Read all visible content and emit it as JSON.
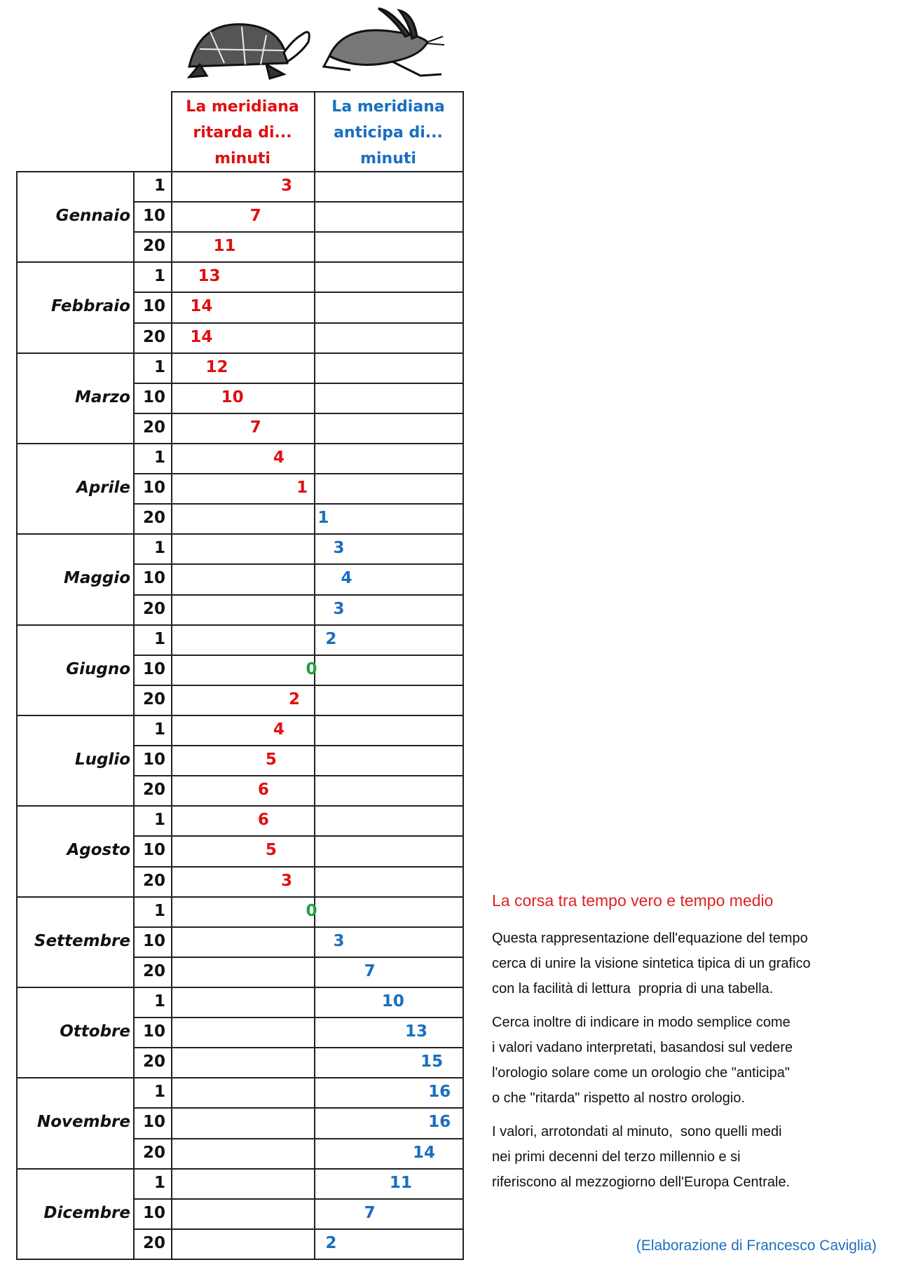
{
  "header": {
    "late": [
      "La meridiana",
      "ritarda di...",
      "minuti"
    ],
    "early": [
      "La meridiana",
      "anticipa di...",
      "minuti"
    ]
  },
  "months": [
    {
      "name": "Gennaio",
      "rows": [
        {
          "day": 1,
          "late": 3
        },
        {
          "day": 10,
          "late": 7
        },
        {
          "day": 20,
          "late": 11
        }
      ]
    },
    {
      "name": "Febbraio",
      "rows": [
        {
          "day": 1,
          "late": 13
        },
        {
          "day": 10,
          "late": 14
        },
        {
          "day": 20,
          "late": 14
        }
      ]
    },
    {
      "name": "Marzo",
      "rows": [
        {
          "day": 1,
          "late": 12
        },
        {
          "day": 10,
          "late": 10
        },
        {
          "day": 20,
          "late": 7
        }
      ]
    },
    {
      "name": "Aprile",
      "rows": [
        {
          "day": 1,
          "late": 4
        },
        {
          "day": 10,
          "late": 1
        },
        {
          "day": 20,
          "early": 1
        }
      ]
    },
    {
      "name": "Maggio",
      "rows": [
        {
          "day": 1,
          "early": 3
        },
        {
          "day": 10,
          "early": 4
        },
        {
          "day": 20,
          "early": 3
        }
      ]
    },
    {
      "name": "Giugno",
      "rows": [
        {
          "day": 1,
          "early": 2
        },
        {
          "day": 10,
          "zero": 0
        },
        {
          "day": 20,
          "late": 2
        }
      ]
    },
    {
      "name": "Luglio",
      "rows": [
        {
          "day": 1,
          "late": 4
        },
        {
          "day": 10,
          "late": 5
        },
        {
          "day": 20,
          "late": 6
        }
      ]
    },
    {
      "name": "Agosto",
      "rows": [
        {
          "day": 1,
          "late": 6
        },
        {
          "day": 10,
          "late": 5
        },
        {
          "day": 20,
          "late": 3
        }
      ]
    },
    {
      "name": "Settembre",
      "rows": [
        {
          "day": 1,
          "zero": 0
        },
        {
          "day": 10,
          "early": 3
        },
        {
          "day": 20,
          "early": 7
        }
      ]
    },
    {
      "name": "Ottobre",
      "rows": [
        {
          "day": 1,
          "early": 10
        },
        {
          "day": 10,
          "early": 13
        },
        {
          "day": 20,
          "early": 15
        }
      ]
    },
    {
      "name": "Novembre",
      "rows": [
        {
          "day": 1,
          "early": 16
        },
        {
          "day": 10,
          "early": 16
        },
        {
          "day": 20,
          "early": 14
        }
      ]
    },
    {
      "name": "Dicembre",
      "rows": [
        {
          "day": 1,
          "early": 11
        },
        {
          "day": 10,
          "early": 7
        },
        {
          "day": 20,
          "early": 2
        }
      ]
    }
  ],
  "notes": {
    "title": "La corsa tra tempo vero e tempo medio",
    "paragraphs": [
      [
        "Questa rappresentazione dell'equazione del tempo",
        "cerca di unire la visione sintetica tipica di un grafico",
        "con la facilità di lettura  propria di una tabella."
      ],
      [
        "Cerca inoltre di indicare in modo semplice come",
        "i valori vadano interpretati, basandosi sul vedere",
        "l'orologio solare come un orologio che \"anticipa\"",
        "o che \"ritarda\" rispetto al nostro orologio."
      ],
      [
        "I valori, arrotondati al minuto,  sono quelli medi",
        "nei primi decenni del terzo millennio e si",
        "riferiscono al mezzogiorno dell'Europa Centrale."
      ]
    ],
    "credit": "(Elaborazione di Francesco Caviglia)"
  }
}
